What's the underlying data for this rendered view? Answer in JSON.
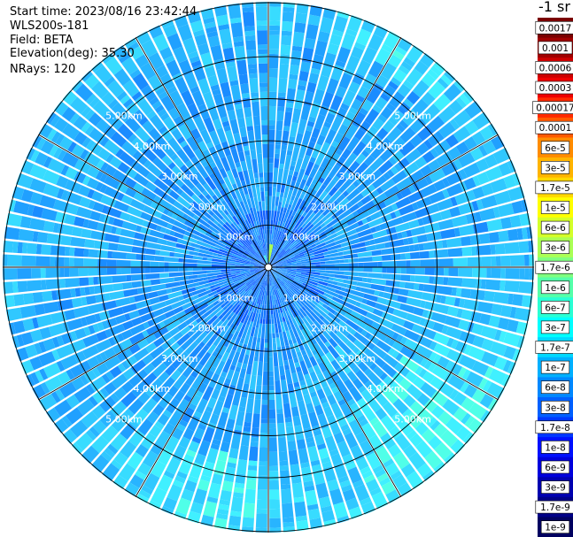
{
  "info": {
    "start_time": "Start time: 2023/08/16 23:42:44",
    "instrument": "WLS200s-181",
    "field": "Field: BETA",
    "elevation": "Elevation(deg): 35.30",
    "nrays": "NRays: 120"
  },
  "colorbar": {
    "unit": "-1 sr",
    "labels": [
      "0.0017",
      "0.001",
      "0.0006",
      "0.0003",
      "0.00017",
      "0.0001",
      "6e-5",
      "3e-5",
      "1.7e-5",
      "1e-5",
      "6e-6",
      "3e-6",
      "1.7e-6",
      "1e-6",
      "6e-7",
      "3e-7",
      "1.7e-7",
      "1e-7",
      "6e-8",
      "3e-8",
      "1.7e-8",
      "1e-8",
      "6e-9",
      "3e-9",
      "1.7e-9",
      "1e-9"
    ],
    "colors": [
      "#7a0000",
      "#a00000",
      "#cc0000",
      "#ee0000",
      "#ff2a00",
      "#ff5a00",
      "#ff8c00",
      "#ffb400",
      "#ffd800",
      "#ffff00",
      "#d4ff2a",
      "#aaff55",
      "#80ff80",
      "#55ffaa",
      "#2affd4",
      "#00ffff",
      "#00d8ff",
      "#00b0ff",
      "#0088ff",
      "#0060ff",
      "#0038ff",
      "#0010ff",
      "#0000dd",
      "#0000b0",
      "#000088",
      "#000060"
    ]
  },
  "chart_data": {
    "type": "heatmap",
    "projection": "polar-ppi",
    "field": "BETA",
    "elevation_deg": 35.3,
    "n_rays": 120,
    "range_unit": "km",
    "range_rings_km": [
      1,
      2,
      3,
      4,
      5
    ],
    "ring_labels": [
      "1.00km",
      "2.00km",
      "3.00km",
      "4.00km",
      "5.00km"
    ],
    "max_range_km": 6.3,
    "spoke_angles_deg": [
      0,
      30,
      60,
      90,
      120,
      150
    ],
    "dominant_value_range": [
      6e-09,
      1e-07
    ],
    "colorbar_range": [
      1e-09,
      0.0017
    ],
    "colorbar_scale": "log"
  }
}
